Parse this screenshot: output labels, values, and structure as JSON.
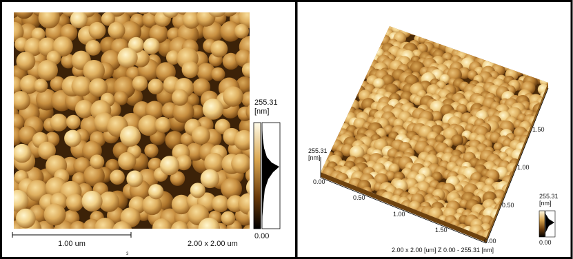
{
  "left_panel": {
    "colorbar": {
      "max": "255.31",
      "unit": "[nm]",
      "min": "0.00"
    },
    "scale_bar": "1.00 um",
    "scan_size": "2.00 x 2.00 um",
    "marker": "3"
  },
  "right_panel": {
    "z_label": {
      "max": "255.31",
      "unit": "[nm]",
      "min": "0.00"
    },
    "front_axis_ticks": [
      "0.50",
      "1.00",
      "1.50"
    ],
    "corner_label": "0.00",
    "right_axis_ticks": [
      "0.50",
      "1.00",
      "1.50"
    ],
    "caption": "2.00 x 2.00 [um]   Z 0.00 - 255.31 [nm]",
    "colorbar": {
      "max": "255.31",
      "unit": "[nm]",
      "min": "0.00"
    }
  }
}
